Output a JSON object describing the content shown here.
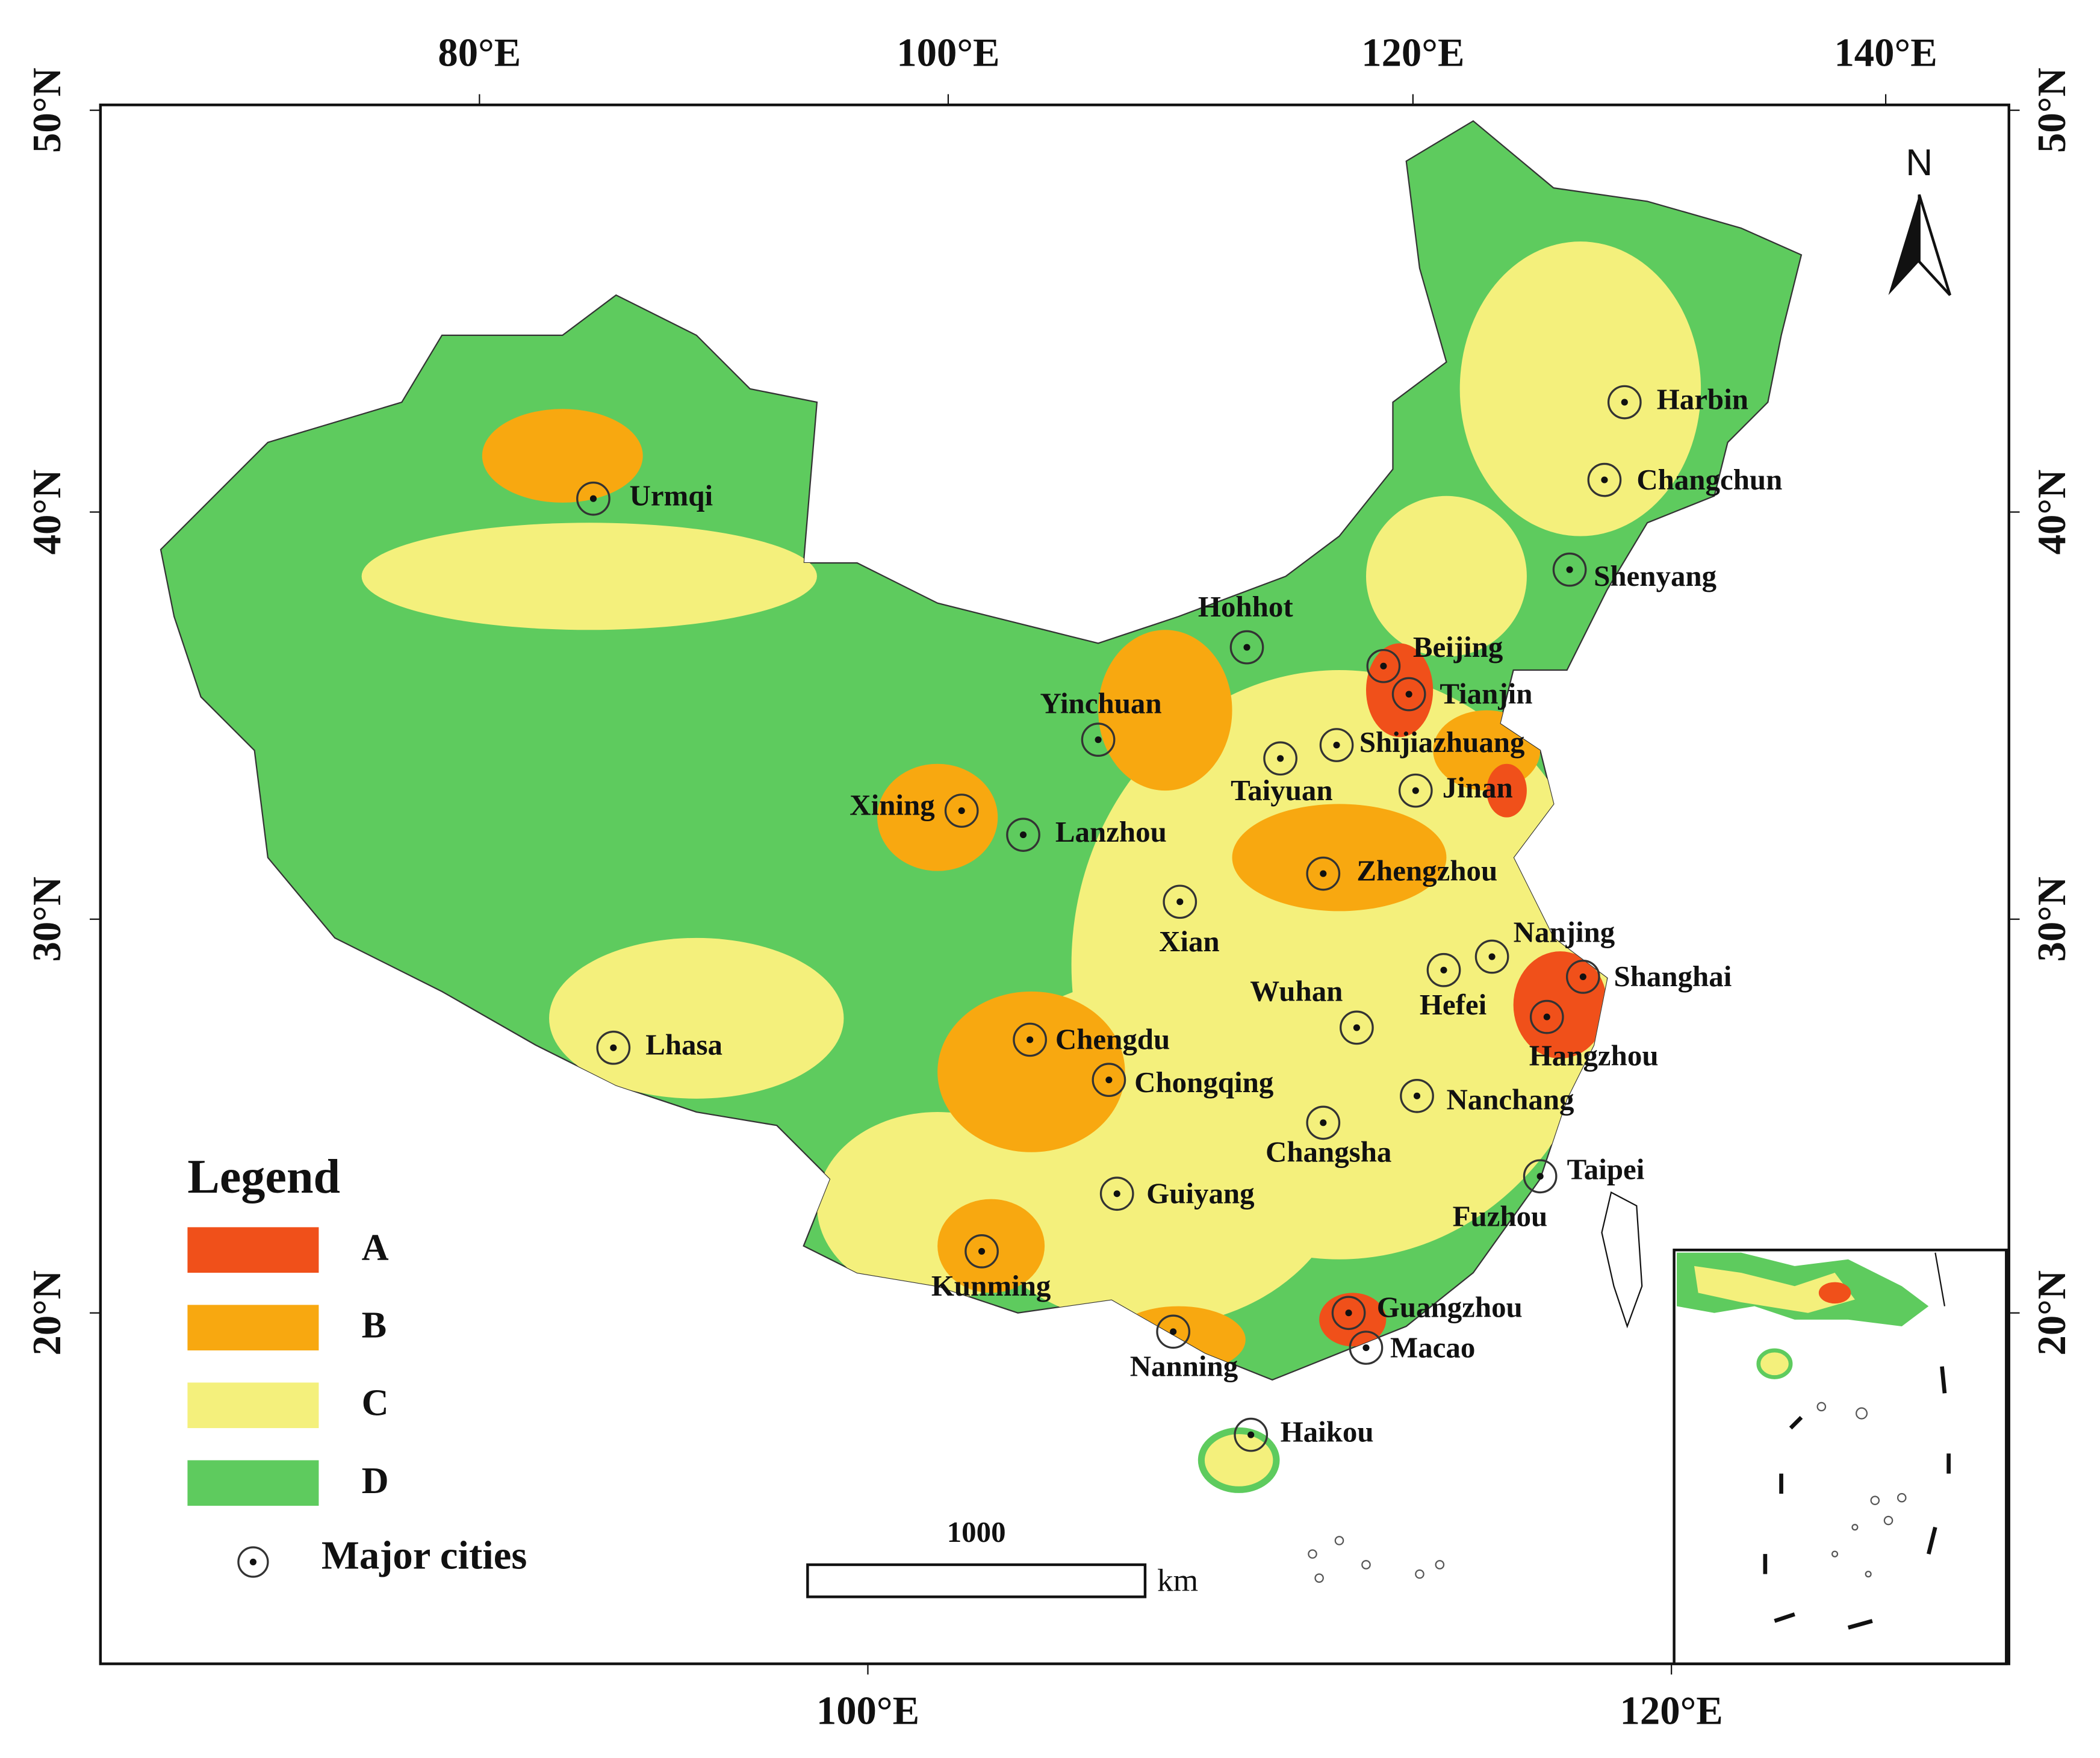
{
  "axes": {
    "top_ticks": [
      "80°E",
      "100°E",
      "120°E",
      "140°E"
    ],
    "bottom_ticks": [
      "100°E",
      "120°E"
    ],
    "left_ticks": [
      "50°N",
      "40°N",
      "30°N",
      "20°N"
    ],
    "right_ticks": [
      "50°N",
      "40°N",
      "30°N",
      "20°N"
    ]
  },
  "north": "N",
  "cities": [
    "Urmqi",
    "Harbin",
    "Changchun",
    "Shenyang",
    "Hohhot",
    "Beijing",
    "Tianjin",
    "Yinchuan",
    "Shijiazhuang",
    "Taiyuan",
    "Jinan",
    "Xining",
    "Lanzhou",
    "Zhengzhou",
    "Xian",
    "Nanjing",
    "Shanghai",
    "Hefei",
    "Wuhan",
    "Hangzhou",
    "Lhasa",
    "Chengdu",
    "Chongqing",
    "Nanchang",
    "Changsha",
    "Taipei",
    "Guiyang",
    "Fuzhou",
    "Kunming",
    "Guangzhou",
    "Macao",
    "Nanning",
    "Haikou"
  ],
  "legend": {
    "title": "Legend",
    "items": [
      {
        "label": "A",
        "color": "#f0501a"
      },
      {
        "label": "B",
        "color": "#f8a810"
      },
      {
        "label": "C",
        "color": "#f4f07c"
      },
      {
        "label": "D",
        "color": "#5ecb5e"
      }
    ],
    "cities_label": "Major cities"
  },
  "scale_bar": {
    "value": "1000",
    "unit": "km"
  }
}
